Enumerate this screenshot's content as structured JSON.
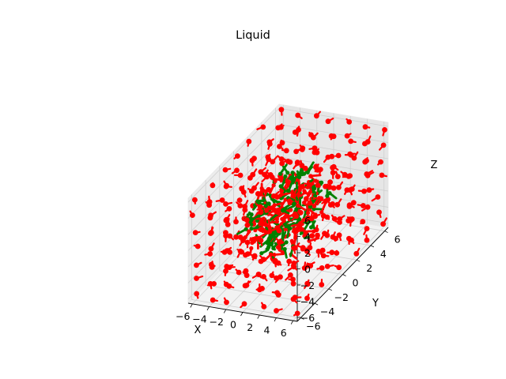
{
  "chart_data": {
    "type": "scatter",
    "projection": "3d",
    "title": "Liquid",
    "xlabel": "X",
    "ylabel": "Y",
    "zlabel": "Z",
    "xlim": [
      -6.5,
      6.5
    ],
    "ylim": [
      -6.5,
      6.5
    ],
    "zlim": [
      -6.5,
      6.5
    ],
    "x_ticks": [
      -6,
      -4,
      -2,
      0,
      2,
      4,
      6
    ],
    "y_ticks": [
      -6,
      -4,
      -2,
      0,
      2,
      4,
      6
    ],
    "z_ticks": [
      -6,
      -4,
      -2,
      0,
      2,
      4,
      6
    ],
    "grid": true,
    "series": [
      {
        "role": "outer lattice molecules",
        "color": "#ff0000",
        "marker": "circle-with-stick",
        "lattice": {
          "min": -6,
          "max": 6,
          "step": 2
        },
        "excluded_radius": 4.2
      },
      {
        "role": "inner disordered molecules",
        "colors": [
          "#008000",
          "#ff0000"
        ],
        "marker": "stick",
        "center": [
          0,
          0,
          0
        ],
        "radius": 4.2,
        "count": 220
      }
    ]
  }
}
